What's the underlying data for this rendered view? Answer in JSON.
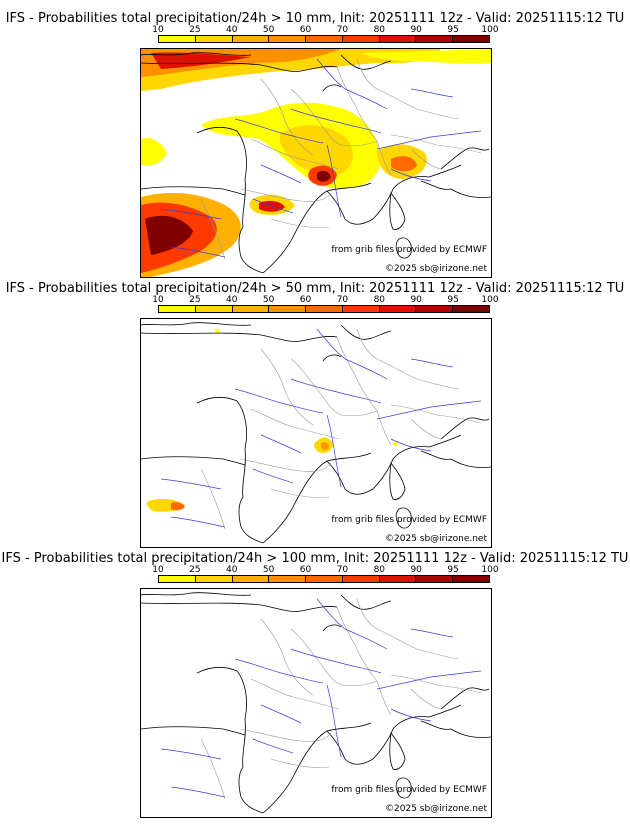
{
  "colorbar": {
    "ticks": [
      "10",
      "25",
      "40",
      "50",
      "60",
      "70",
      "80",
      "90",
      "95",
      "100"
    ],
    "colors": [
      "#ffff00",
      "#ffd700",
      "#ffb000",
      "#ff9000",
      "#ff6a00",
      "#ff3a00",
      "#e01000",
      "#b00000",
      "#800000",
      "#500000"
    ]
  },
  "panels": [
    {
      "title": "IFS - Probabilities total precipitation/24h > 10 mm, Init: 20251111 12z - Valid: 20251115:12 TU",
      "source_credit": "from grib files provided by ECMWF",
      "copyright": "©2025 sb@irizone.net"
    },
    {
      "title": "IFS - Probabilities total precipitation/24h > 50 mm, Init: 20251111 12z - Valid: 20251115:12 TU",
      "source_credit": "from grib files provided by ECMWF",
      "copyright": "©2025 sb@irizone.net"
    },
    {
      "title": "IFS - Probabilities total precipitation/24h > 100 mm, Init: 20251111 12z - Valid: 20251115:12 TU",
      "source_credit": "from grib files provided by ECMWF",
      "copyright": "©2025 sb@irizone.net"
    }
  ]
}
